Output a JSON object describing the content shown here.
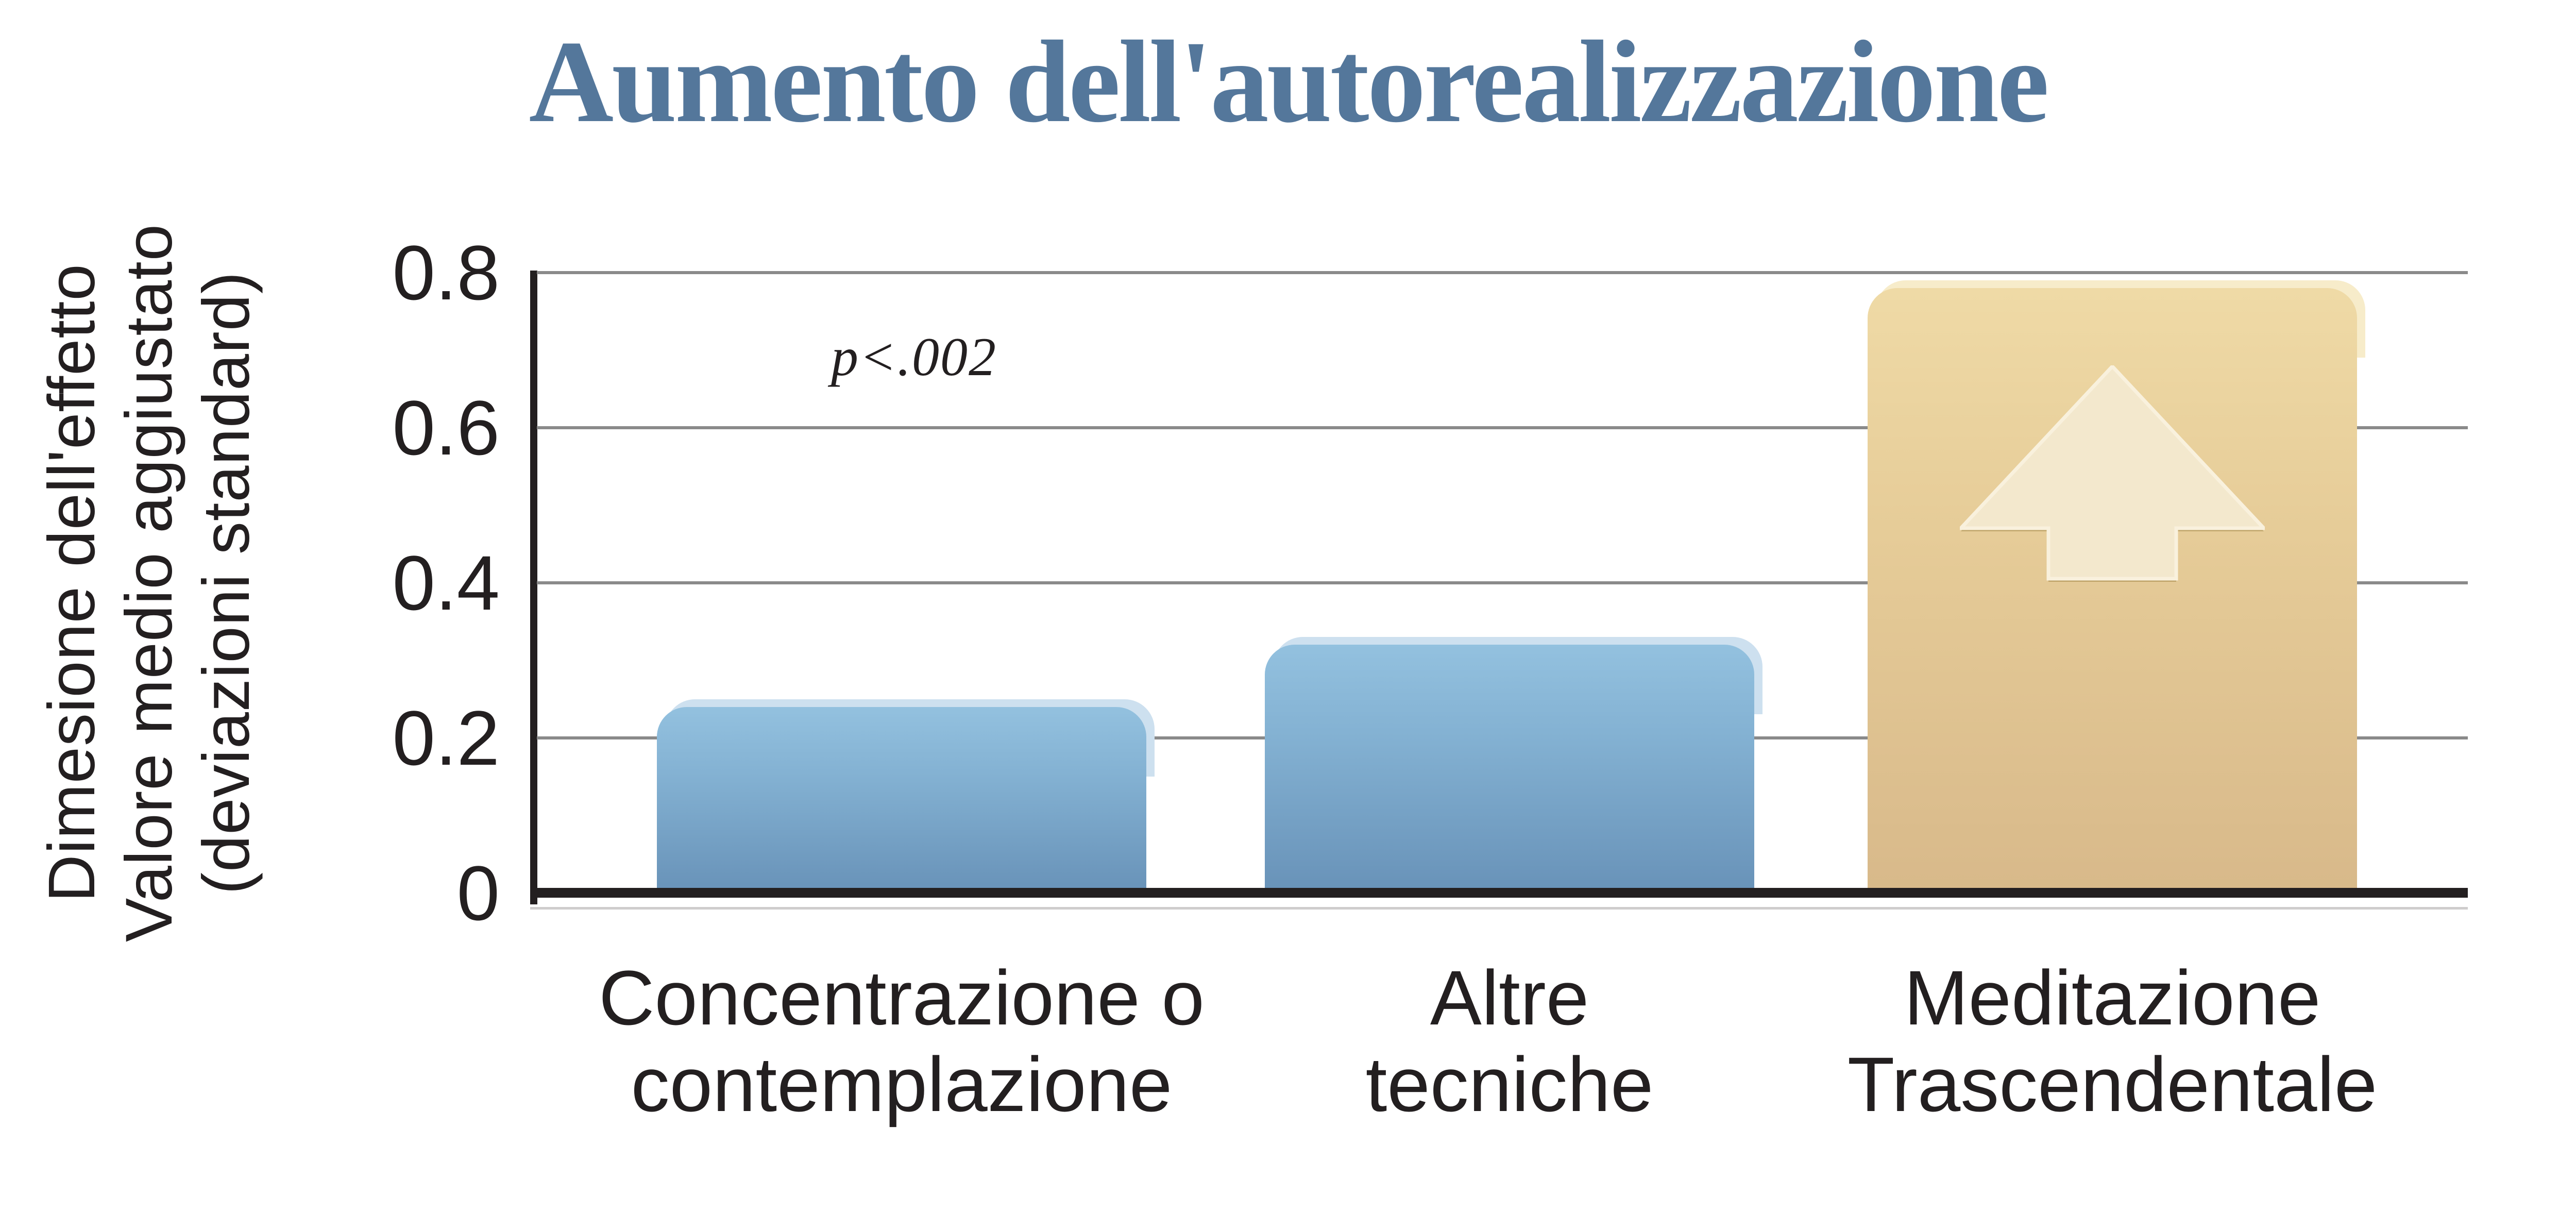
{
  "page": {
    "background": "#ffffff"
  },
  "chart_data": {
    "type": "bar",
    "title": "Aumento dell'autorealizzazione",
    "title_color": "#54779b",
    "ylabel": "Dimesione dell'effetto\nValore medio aggiustato\n(deviazioni standard)",
    "xlabel": "",
    "ylim": [
      0,
      0.8
    ],
    "grid": "horizontal",
    "legend": "none",
    "annotation": "p<.002",
    "yticks": [
      {
        "value": 0.8,
        "label": "0.8"
      },
      {
        "value": 0.6,
        "label": "0.6"
      },
      {
        "value": 0.4,
        "label": "0.4"
      },
      {
        "value": 0.2,
        "label": "0.2"
      },
      {
        "value": 0,
        "label": "0"
      }
    ],
    "categories": [
      "Concentrazione o\ncontemplazione",
      "Altre\ntecniche",
      "Meditazione\nTrascendentale"
    ],
    "values": [
      0.24,
      0.32,
      0.78
    ],
    "bars": [
      {
        "id": "concentrazione-o-contemplazione",
        "value": 0.24,
        "color_style": "blue",
        "arrow": false
      },
      {
        "id": "altre-tecniche",
        "value": 0.32,
        "color_style": "blue",
        "arrow": false
      },
      {
        "id": "meditazione-trascendentale",
        "value": 0.78,
        "color_style": "gold",
        "arrow": true
      }
    ],
    "colors": {
      "blue_bar_top": "#93c1df",
      "blue_bar_bottom": "#6892b8",
      "blue_bar_highlight": "#cde0ef",
      "gold_bar_top": "#efdaa6",
      "gold_bar_bottom": "#d8b98a",
      "gold_bar_highlight": "#f7ecca",
      "arrow_fill": "#f3e8cd",
      "arrow_edge": "#f9f1dd",
      "gridline": "#8a8a8a",
      "axis": "#231f20",
      "text": "#231f20"
    }
  }
}
